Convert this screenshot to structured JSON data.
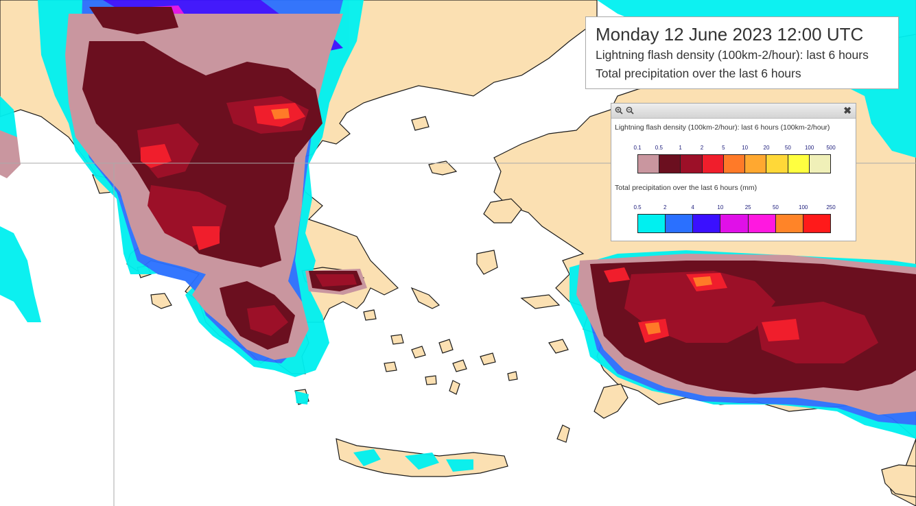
{
  "header": {
    "title": "Monday 12 June 2023 12:00 UTC",
    "line1": "Lightning flash density (100km-2/hour): last 6 hours",
    "line2": "Total precipitation over the last 6 hours"
  },
  "legend": {
    "zoom_in_icon": "zoom-in-icon",
    "zoom_out_icon": "zoom-out-icon",
    "close_icon": "close-icon",
    "lightning": {
      "title": "Lightning flash density (100km-2/hour): last 6 hours (100km-2/hour)",
      "ticks": [
        "0.1",
        "0.5",
        "1",
        "2",
        "5",
        "10",
        "20",
        "50",
        "100",
        "500"
      ],
      "colors": [
        "#c9969f",
        "#6b0f1f",
        "#9c1028",
        "#f01e2c",
        "#ff7a28",
        "#ffa830",
        "#ffd838",
        "#ffff40",
        "#f0f0b8"
      ]
    },
    "precip": {
      "title": "Total precipitation over the last 6 hours (mm)",
      "ticks": [
        "0.5",
        "2",
        "4",
        "10",
        "25",
        "50",
        "100",
        "250"
      ],
      "colors": [
        "#00f0f0",
        "#2a70ff",
        "#3a10ff",
        "#e010e8",
        "#ff18e0",
        "#ff8428",
        "#ff1a1a"
      ]
    }
  },
  "map_colors": {
    "sea": "#ffffff",
    "land": "#fbe0b2",
    "coast": "#1a1a1a"
  }
}
